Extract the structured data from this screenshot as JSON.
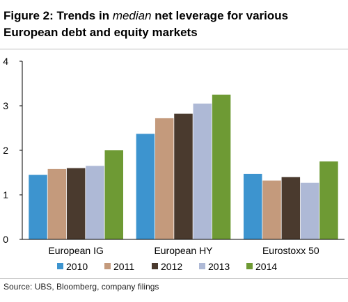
{
  "header": {
    "title_prefix": "Figure 2: Trends in ",
    "title_emph": "median",
    "title_suffix": " net leverage for various European debt and equity markets"
  },
  "footer": {
    "source": "Source:  UBS, Bloomberg, company filings"
  },
  "chart_data": {
    "type": "bar",
    "title": "",
    "xlabel": "",
    "ylabel": "",
    "ylim": [
      0,
      4
    ],
    "yticks": [
      "0",
      "1",
      "2",
      "3",
      "4"
    ],
    "grid": false,
    "legend_position": "bottom",
    "categories": [
      "European IG",
      "European HY",
      "Eurostoxx 50"
    ],
    "series": [
      {
        "name": "2010",
        "color": "#3d94cf",
        "values": [
          1.45,
          2.37,
          1.47
        ]
      },
      {
        "name": "2011",
        "color": "#c49a7c",
        "values": [
          1.58,
          2.72,
          1.32
        ]
      },
      {
        "name": "2012",
        "color": "#4a3a2e",
        "values": [
          1.6,
          2.82,
          1.4
        ]
      },
      {
        "name": "2013",
        "color": "#aeb9d6",
        "values": [
          1.65,
          3.05,
          1.27
        ]
      },
      {
        "name": "2014",
        "color": "#6e9a34",
        "values": [
          2.0,
          3.25,
          1.75
        ]
      }
    ]
  }
}
